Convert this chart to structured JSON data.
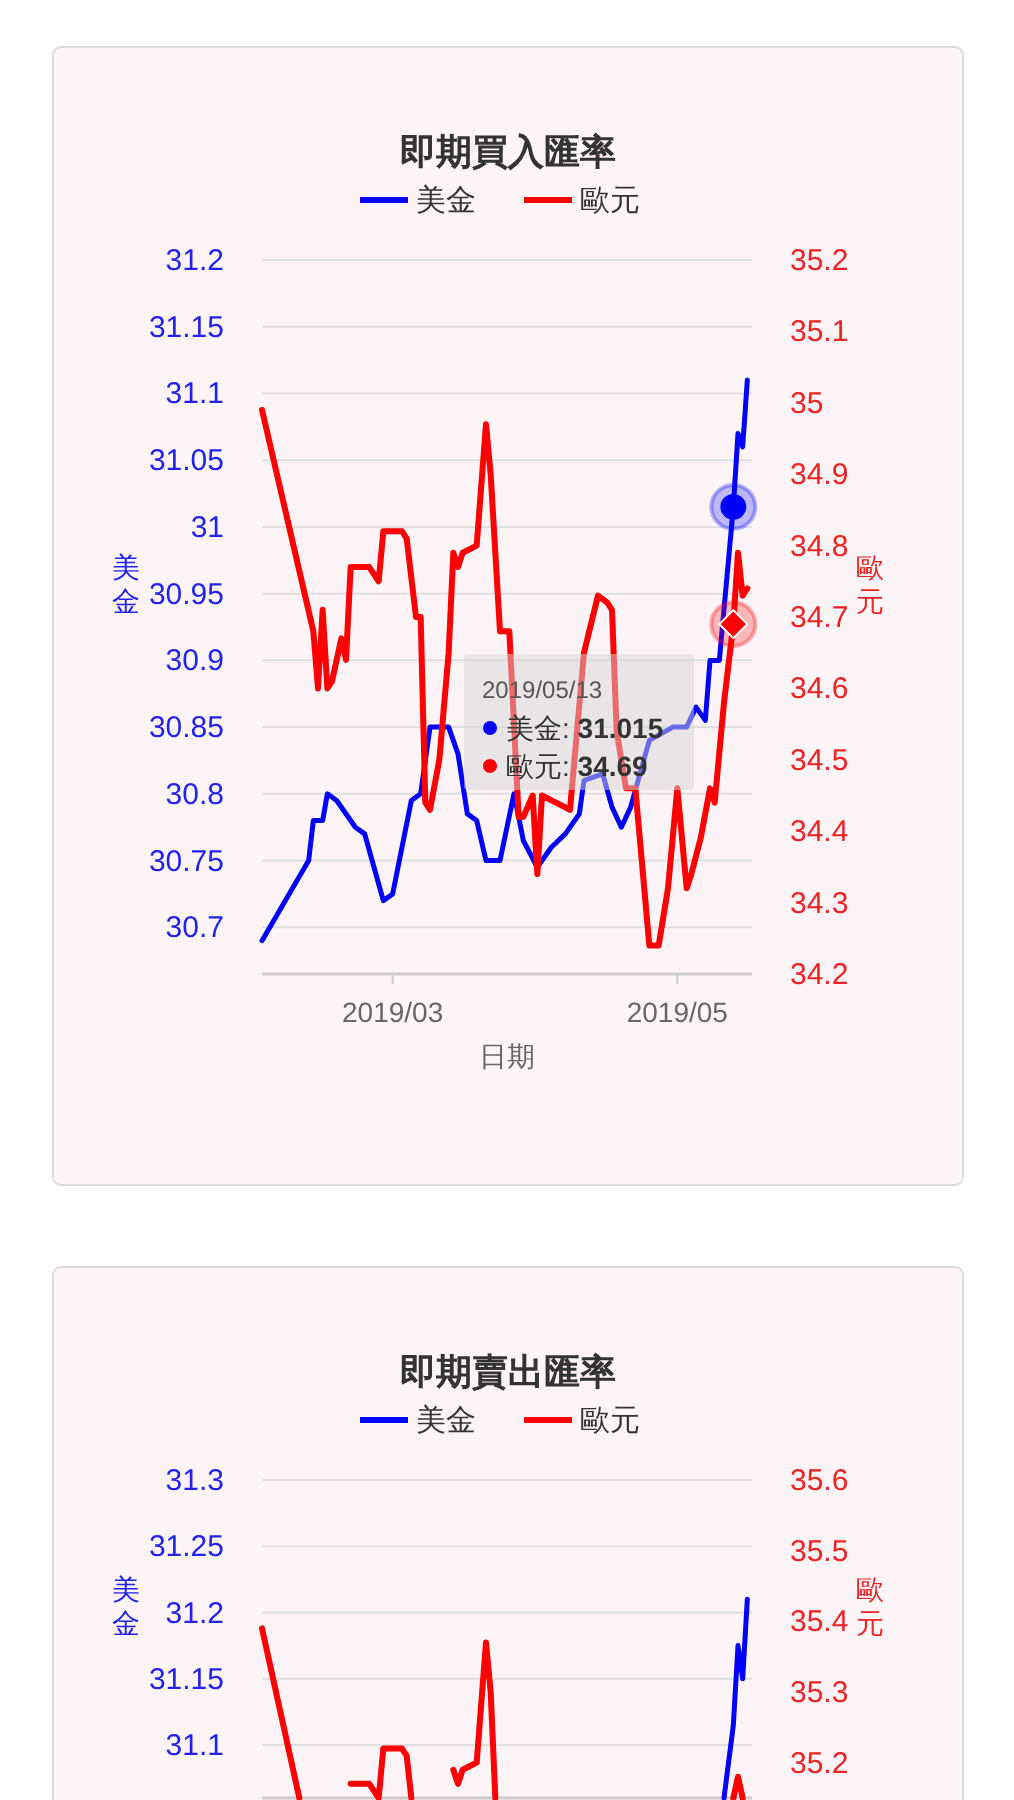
{
  "chart_data": [
    {
      "type": "line",
      "title": "即期買入匯率",
      "xlabel": "日期",
      "ylabel": "美金",
      "y2label": "歐元",
      "legend": "top",
      "grid": "y",
      "xlim": [
        "2019-02-01",
        "2019-05-17"
      ],
      "xticks": [
        {
          "value": "2019-03",
          "label": "2019/03"
        },
        {
          "value": "2019-05",
          "label": "2019/05"
        }
      ],
      "ylim": [
        30.665,
        31.2
      ],
      "yticks": [
        30.7,
        30.75,
        30.8,
        30.85,
        30.9,
        30.95,
        31,
        31.05,
        31.1,
        31.15,
        31.2
      ],
      "y2lim": [
        34.2,
        35.2
      ],
      "y2ticks": [
        34.2,
        34.3,
        34.4,
        34.5,
        34.6,
        34.7,
        34.8,
        34.9,
        35,
        35.1,
        35.2
      ],
      "series": [
        {
          "name": "美金",
          "color": "#0000ff",
          "x": [
            "2019-02-01",
            "2019-02-11",
            "2019-02-12",
            "2019-02-14",
            "2019-02-15",
            "2019-02-17",
            "2019-02-20",
            "2019-02-21",
            "2019-02-23",
            "2019-02-25",
            "2019-02-27",
            "2019-03-01",
            "2019-03-05",
            "2019-03-07",
            "2019-03-09",
            "2019-03-13",
            "2019-03-15",
            "2019-03-17",
            "2019-03-19",
            "2019-03-21",
            "2019-03-24",
            "2019-03-27",
            "2019-03-29",
            "2019-04-01",
            "2019-04-04",
            "2019-04-07",
            "2019-04-10",
            "2019-04-11",
            "2019-04-15",
            "2019-04-17",
            "2019-04-19",
            "2019-04-21",
            "2019-04-25",
            "2019-04-30",
            "2019-05-03",
            "2019-05-05",
            "2019-05-07",
            "2019-05-08",
            "2019-05-10",
            "2019-05-13",
            "2019-05-14",
            "2019-05-15",
            "2019-05-16"
          ],
          "values": [
            30.69,
            30.75,
            30.78,
            30.78,
            30.8,
            30.795,
            30.78,
            30.775,
            30.77,
            30.745,
            30.72,
            30.725,
            30.795,
            30.8,
            30.85,
            30.85,
            30.83,
            30.785,
            30.78,
            30.75,
            30.75,
            30.8,
            30.765,
            30.745,
            30.76,
            30.77,
            30.785,
            30.81,
            30.815,
            30.79,
            30.775,
            30.79,
            30.84,
            30.85,
            30.85,
            30.865,
            30.855,
            30.9,
            30.9,
            31.015,
            31.07,
            31.06,
            31.11
          ]
        },
        {
          "name": "歐元",
          "color": "#ff0000",
          "axis": "y2",
          "x": [
            "2019-02-01",
            "2019-02-12",
            "2019-02-13",
            "2019-02-14",
            "2019-02-15",
            "2019-02-16",
            "2019-02-18",
            "2019-02-19",
            "2019-02-20",
            "2019-02-22",
            "2019-02-24",
            "2019-02-26",
            "2019-02-27",
            "2019-03-01",
            "2019-03-03",
            "2019-03-04",
            "2019-03-06",
            "2019-03-07",
            "2019-03-08",
            "2019-03-09",
            "2019-03-11",
            "2019-03-13",
            "2019-03-14",
            "2019-03-15",
            "2019-03-16",
            "2019-03-19",
            "2019-03-21",
            "2019-03-22",
            "2019-03-24",
            "2019-03-26",
            "2019-03-28",
            "2019-03-29",
            "2019-03-31",
            "2019-04-01",
            "2019-04-02",
            "2019-04-05",
            "2019-04-08",
            "2019-04-11",
            "2019-04-14",
            "2019-04-16",
            "2019-04-17",
            "2019-04-18",
            "2019-04-20",
            "2019-04-22",
            "2019-04-25",
            "2019-04-27",
            "2019-04-29",
            "2019-05-01",
            "2019-05-03",
            "2019-05-04",
            "2019-05-06",
            "2019-05-08",
            "2019-05-09",
            "2019-05-11",
            "2019-05-13",
            "2019-05-14",
            "2019-05-15",
            "2019-05-16"
          ],
          "values": [
            34.99,
            34.68,
            34.6,
            34.71,
            34.6,
            34.61,
            34.67,
            34.64,
            34.77,
            34.77,
            34.77,
            34.75,
            34.82,
            34.82,
            34.82,
            34.81,
            34.7,
            34.7,
            34.44,
            34.43,
            34.5,
            34.65,
            34.79,
            34.77,
            34.79,
            34.8,
            34.97,
            34.9,
            34.68,
            34.68,
            34.42,
            34.42,
            34.45,
            34.34,
            34.45,
            34.44,
            34.43,
            34.65,
            34.73,
            34.72,
            34.71,
            34.54,
            34.46,
            34.46,
            34.24,
            34.24,
            34.32,
            34.46,
            34.32,
            34.34,
            34.39,
            34.46,
            34.44,
            34.58,
            34.69,
            34.79,
            34.73,
            34.74
          ]
        }
      ],
      "annotations": [
        "2019/05/13",
        "美金: 31.015",
        "歐元: 34.69"
      ]
    },
    {
      "type": "line",
      "title": "即期賣出匯率",
      "ylabel": "美金",
      "y2label": "歐元",
      "legend": "top",
      "grid": "y",
      "tick_labels": "y",
      "xlim": [
        "2019-02-01",
        "2019-05-17"
      ],
      "ylim": [
        31.06,
        31.3
      ],
      "yticks": [
        31.1,
        31.15,
        31.2,
        31.25,
        31.3
      ],
      "y2lim": [
        35.15,
        35.6
      ],
      "y2ticks": [
        35.2,
        35.3,
        35.4,
        35.5,
        35.6
      ],
      "series": [
        {
          "name": "美金",
          "color": "#0000ff",
          "x": [
            "2019-05-11",
            "2019-05-13",
            "2019-05-14",
            "2019-05-15",
            "2019-05-16"
          ],
          "values": [
            31.06,
            31.115,
            31.175,
            31.15,
            31.21
          ]
        },
        {
          "name": "歐元",
          "color": "#ff0000",
          "axis": "y2",
          "x": [
            "2019-02-01",
            "2019-02-09",
            "2019-02-15",
            "2019-02-20",
            "2019-02-22",
            "2019-02-24",
            "2019-02-26",
            "2019-02-27",
            "2019-03-01",
            "2019-03-03",
            "2019-03-04",
            "2019-03-05",
            "2019-03-10",
            "2019-03-14",
            "2019-03-15",
            "2019-03-16",
            "2019-03-19",
            "2019-03-21",
            "2019-03-22",
            "2019-03-23",
            "2019-04-20",
            "2019-05-13",
            "2019-05-14",
            "2019-05-15"
          ],
          "values": [
            35.39,
            35.15,
            null,
            35.17,
            35.17,
            35.17,
            35.15,
            35.22,
            35.22,
            35.22,
            35.21,
            35.15,
            null,
            35.19,
            35.17,
            35.19,
            35.2,
            35.37,
            35.3,
            35.15,
            null,
            35.15,
            35.18,
            35.15
          ]
        }
      ]
    }
  ]
}
